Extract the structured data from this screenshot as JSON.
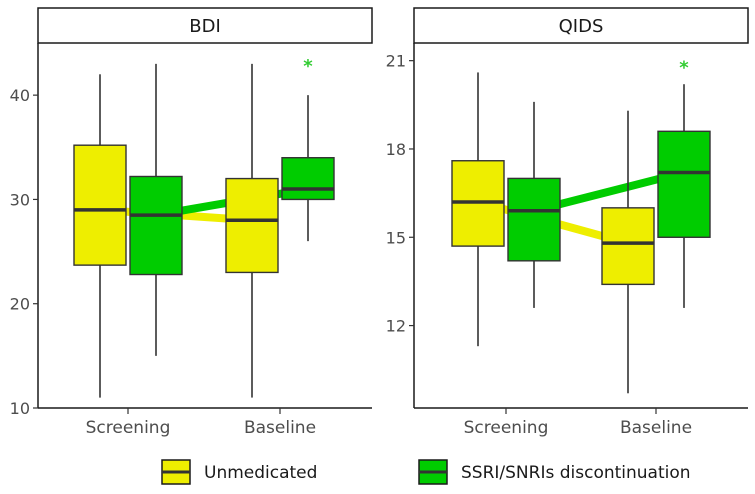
{
  "chart_data": [
    {
      "type": "box",
      "title": "BDI",
      "categories": [
        "Screening",
        "Baseline"
      ],
      "ylim": [
        10,
        45
      ],
      "yticks": [
        10,
        20,
        30,
        40
      ],
      "series": [
        {
          "name": "Unmedicated",
          "color": "#eeee00",
          "boxes": [
            {
              "category": "Screening",
              "min": 11,
              "q1": 23.7,
              "median": 29,
              "q3": 35.2,
              "max": 42
            },
            {
              "category": "Baseline",
              "min": 11,
              "q1": 23,
              "median": 28,
              "q3": 32,
              "max": 43
            }
          ]
        },
        {
          "name": "SSRI/SNRIs discontinuation",
          "color": "#00cc00",
          "boxes": [
            {
              "category": "Screening",
              "min": 15,
              "q1": 22.8,
              "median": 28.5,
              "q3": 32.2,
              "max": 43
            },
            {
              "category": "Baseline",
              "min": 26,
              "q1": 30,
              "median": 31,
              "q3": 34,
              "max": 40
            }
          ]
        }
      ],
      "annotations": [
        {
          "text": "*",
          "category": "Baseline",
          "series": "SSRI/SNRIs discontinuation",
          "y": 43.2,
          "color": "#33cc33"
        }
      ]
    },
    {
      "type": "box",
      "title": "QIDS",
      "categories": [
        "Screening",
        "Baseline"
      ],
      "ylim": [
        9.2,
        21.6
      ],
      "yticks": [
        12,
        15,
        18,
        21
      ],
      "series": [
        {
          "name": "Unmedicated",
          "color": "#eeee00",
          "boxes": [
            {
              "category": "Screening",
              "min": 11.3,
              "q1": 14.7,
              "median": 16.2,
              "q3": 17.6,
              "max": 20.6
            },
            {
              "category": "Baseline",
              "min": 9.7,
              "q1": 13.4,
              "median": 14.8,
              "q3": 16,
              "max": 19.3
            }
          ]
        },
        {
          "name": "SSRI/SNRIs discontinuation",
          "color": "#00cc00",
          "boxes": [
            {
              "category": "Screening",
              "min": 12.6,
              "q1": 14.2,
              "median": 15.9,
              "q3": 17,
              "max": 19.6
            },
            {
              "category": "Baseline",
              "min": 12.6,
              "q1": 15,
              "median": 17.2,
              "q3": 18.6,
              "max": 20.2
            }
          ]
        }
      ],
      "annotations": [
        {
          "text": "*",
          "category": "Baseline",
          "series": "SSRI/SNRIs discontinuation",
          "y": 20.9,
          "color": "#33cc33"
        }
      ]
    }
  ],
  "legend": {
    "items": [
      {
        "label": "Unmedicated",
        "color": "#eeee00"
      },
      {
        "label": "SSRI/SNRIs discontinuation",
        "color": "#00cc00"
      }
    ]
  }
}
